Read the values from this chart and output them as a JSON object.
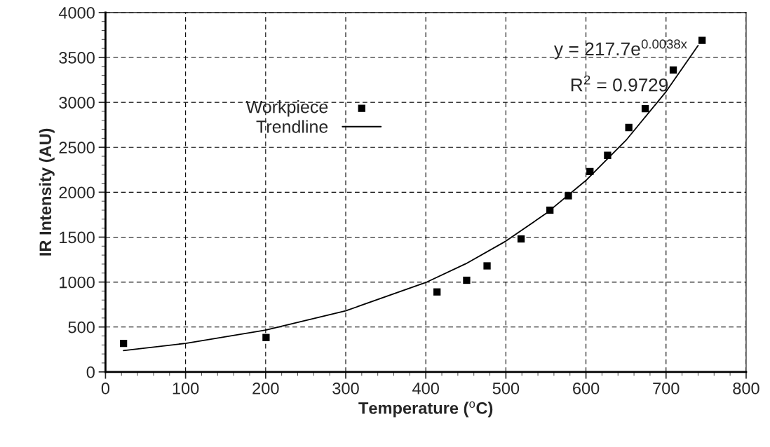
{
  "chart_data": {
    "type": "scatter",
    "xlabel": "Temperature ($^{o}$C)",
    "ylabel": "IR Intensity (AU)",
    "series": [
      {
        "name": "Workpiece",
        "color": "#000000",
        "marker": "square",
        "x": [
          22.5,
          200.5,
          414,
          451,
          476.5,
          519,
          555,
          578,
          605,
          627,
          653.5,
          674,
          709,
          745
        ],
        "values": [
          318,
          383,
          890,
          1020,
          1180,
          1480,
          1800,
          1960,
          2230,
          2410,
          2720,
          2930,
          3360,
          3690
        ]
      },
      {
        "name": "Trendline",
        "type": "line",
        "color": "#000000",
        "marker": "none",
        "line_style": "solid",
        "x": [
          22.5,
          100,
          200,
          300,
          400,
          450,
          500,
          550,
          600,
          650,
          700,
          740
        ],
        "values": [
          237,
          318,
          465,
          680,
          995,
          1204,
          1456,
          1762,
          2131,
          2578,
          3119,
          3633
        ]
      }
    ],
    "annotations": [
      "y = 217.7e$^{0.0038x}$",
      "R$^{2}$ = 0.9729"
    ],
    "xlim": [
      0,
      800
    ],
    "xticks": [
      0,
      100,
      200,
      300,
      400,
      500,
      600,
      700,
      800
    ],
    "ylim": [
      0,
      4000
    ],
    "yticks": [
      0,
      500,
      1000,
      1500,
      2000,
      2500,
      3000,
      3500,
      4000
    ],
    "grid": true,
    "legend": "top left"
  }
}
